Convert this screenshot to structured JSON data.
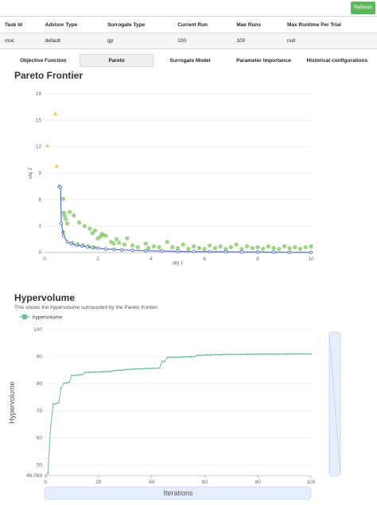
{
  "toolbar": {
    "refresh_label": "Refresh"
  },
  "info_table": {
    "headers": [
      "Task Id",
      "Advisor Type",
      "Surrogate Type",
      "Current Run",
      "Max Runs",
      "Max Runtime Per Trial"
    ],
    "row": [
      "moc",
      "default",
      "gp",
      "100",
      "100",
      "null"
    ]
  },
  "tabs": [
    {
      "label": "Objective Function",
      "active": false
    },
    {
      "label": "Pareto",
      "active": true
    },
    {
      "label": "Surrogate Model",
      "active": false
    },
    {
      "label": "Parameter Importance",
      "active": false
    },
    {
      "label": "Historical configurations",
      "active": false
    }
  ],
  "pareto": {
    "title": "Pareto Frontier"
  },
  "hypervolume": {
    "title": "Hypervolume",
    "description": "This shows the hypervolume surrounded by the Pareto frontier."
  },
  "chart_data": [
    {
      "type": "scatter",
      "title": "Pareto Frontier",
      "xlabel": "obj 1",
      "ylabel": "obj 2",
      "xlim": [
        0,
        10
      ],
      "ylim": [
        0,
        18
      ],
      "xticks": [
        0,
        2,
        4,
        6,
        8,
        10
      ],
      "yticks": [
        0,
        3,
        6,
        9,
        12,
        15,
        18
      ],
      "grid": true,
      "colors": {
        "frontier": "#5470c6",
        "samples": "#91cc75",
        "outliers": "#fac858"
      },
      "outliers": [
        [
          0.1,
          12.1
        ],
        [
          0.4,
          15.7
        ],
        [
          0.45,
          9.8
        ]
      ],
      "frontier": [
        [
          0.55,
          7.5
        ],
        [
          0.6,
          7.4
        ],
        [
          0.63,
          3.3
        ],
        [
          0.72,
          1.9
        ],
        [
          0.85,
          1.2
        ],
        [
          1.0,
          1.0
        ],
        [
          1.2,
          0.85
        ],
        [
          1.4,
          0.75
        ],
        [
          1.6,
          0.65
        ],
        [
          1.8,
          0.55
        ],
        [
          2.0,
          0.5
        ],
        [
          2.3,
          0.4
        ],
        [
          2.6,
          0.35
        ],
        [
          2.9,
          0.3
        ],
        [
          3.3,
          0.25
        ],
        [
          3.8,
          0.2
        ],
        [
          4.4,
          0.17
        ],
        [
          5.0,
          0.13
        ],
        [
          5.6,
          0.1
        ],
        [
          6.2,
          0.09
        ],
        [
          6.8,
          0.08
        ],
        [
          7.4,
          0.06
        ],
        [
          8.0,
          0.05
        ],
        [
          8.6,
          0.04
        ],
        [
          9.2,
          0.03
        ],
        [
          10.0,
          0.02
        ]
      ],
      "samples": [
        [
          0.7,
          6.1
        ],
        [
          0.72,
          4.5
        ],
        [
          0.75,
          4.2
        ],
        [
          0.8,
          3.8
        ],
        [
          0.85,
          3.3
        ],
        [
          0.7,
          2.3
        ],
        [
          0.95,
          4.6
        ],
        [
          1.1,
          4.2
        ],
        [
          1.3,
          3.4
        ],
        [
          1.5,
          3.0
        ],
        [
          1.7,
          2.7
        ],
        [
          1.8,
          2.2
        ],
        [
          1.9,
          2.5
        ],
        [
          2.0,
          1.6
        ],
        [
          2.1,
          1.8
        ],
        [
          2.15,
          2.1
        ],
        [
          2.2,
          2.0
        ],
        [
          2.3,
          1.9
        ],
        [
          2.5,
          1.2
        ],
        [
          2.6,
          1.0
        ],
        [
          2.7,
          1.5
        ],
        [
          2.8,
          1.1
        ],
        [
          3.0,
          0.9
        ],
        [
          3.1,
          1.6
        ],
        [
          3.3,
          0.8
        ],
        [
          3.5,
          0.6
        ],
        [
          3.8,
          1.0
        ],
        [
          3.9,
          0.5
        ],
        [
          4.1,
          0.7
        ],
        [
          4.3,
          0.6
        ],
        [
          4.6,
          1.2
        ],
        [
          4.8,
          0.6
        ],
        [
          5.0,
          0.5
        ],
        [
          5.2,
          0.9
        ],
        [
          5.4,
          0.4
        ],
        [
          5.6,
          0.7
        ],
        [
          5.8,
          0.5
        ],
        [
          6.0,
          0.4
        ],
        [
          6.2,
          0.8
        ],
        [
          6.4,
          0.5
        ],
        [
          6.6,
          0.7
        ],
        [
          6.8,
          0.4
        ],
        [
          7.0,
          0.6
        ],
        [
          7.2,
          0.9
        ],
        [
          7.4,
          0.4
        ],
        [
          7.6,
          0.7
        ],
        [
          7.8,
          0.5
        ],
        [
          8.0,
          0.6
        ],
        [
          8.2,
          0.4
        ],
        [
          8.4,
          0.7
        ],
        [
          8.6,
          0.5
        ],
        [
          8.8,
          0.4
        ],
        [
          9.0,
          0.7
        ],
        [
          9.2,
          0.5
        ],
        [
          9.4,
          0.6
        ],
        [
          9.6,
          0.4
        ],
        [
          9.8,
          0.6
        ],
        [
          10.0,
          0.7
        ],
        [
          1.05,
          1.1
        ],
        [
          1.25,
          0.9
        ],
        [
          1.45,
          0.8
        ],
        [
          1.65,
          0.7
        ],
        [
          1.85,
          0.6
        ]
      ]
    },
    {
      "type": "line",
      "title": "Hypervolume",
      "xlabel": "Iterations",
      "ylabel": "Hypervolume",
      "legend": "top-left",
      "series": [
        {
          "name": "hypervolume",
          "color": "#6fbe9a"
        }
      ],
      "xlim": [
        0,
        100
      ],
      "ylim": [
        46.069,
        100
      ],
      "xticks": [
        0,
        20,
        40,
        60,
        80,
        100
      ],
      "yticks": [
        50,
        60,
        70,
        80,
        90,
        100
      ],
      "ymin_label": "46.069",
      "grid": true,
      "x": [
        0,
        1,
        2,
        3,
        4,
        5,
        6,
        7,
        8,
        9,
        10,
        11,
        12,
        13,
        14,
        15,
        16,
        17,
        18,
        19,
        20,
        21,
        22,
        23,
        24,
        25,
        26,
        27,
        28,
        29,
        30,
        31,
        32,
        33,
        34,
        35,
        36,
        37,
        38,
        39,
        40,
        41,
        42,
        43,
        44,
        45,
        46,
        47,
        48,
        49,
        50,
        51,
        52,
        53,
        54,
        55,
        56,
        57,
        58,
        59,
        60,
        61,
        62,
        63,
        64,
        65,
        66,
        67,
        68,
        69,
        70,
        71,
        72,
        73,
        74,
        75,
        76,
        77,
        78,
        79,
        80,
        81,
        82,
        83,
        84,
        85,
        86,
        87,
        88,
        89,
        90,
        91,
        92,
        93,
        94,
        95,
        96,
        97,
        98,
        99,
        100
      ],
      "values": [
        46.069,
        47.0,
        64.5,
        72.5,
        72.6,
        73.0,
        78.5,
        80.2,
        80.3,
        80.5,
        83.1,
        83.1,
        83.2,
        83.3,
        83.4,
        84.1,
        84.2,
        84.2,
        84.3,
        84.3,
        84.3,
        84.4,
        84.4,
        84.5,
        84.5,
        84.6,
        84.8,
        84.9,
        85.0,
        85.0,
        85.2,
        85.3,
        85.3,
        85.4,
        85.4,
        85.5,
        85.5,
        85.5,
        85.6,
        85.6,
        85.7,
        85.7,
        85.7,
        85.8,
        88.2,
        88.3,
        89.7,
        89.7,
        89.7,
        89.8,
        89.8,
        89.8,
        89.9,
        89.9,
        89.9,
        90.0,
        90.0,
        90.4,
        90.5,
        90.5,
        90.6,
        90.6,
        90.6,
        90.7,
        90.7,
        90.7,
        90.7,
        90.8,
        90.8,
        90.8,
        90.8,
        90.8,
        90.8,
        90.8,
        90.8,
        90.8,
        90.9,
        90.9,
        90.9,
        90.9,
        90.9,
        90.9,
        90.9,
        90.9,
        90.9,
        90.9,
        90.9,
        90.9,
        90.9,
        90.9,
        90.9,
        90.9,
        91.0,
        91.0,
        91.0,
        91.0,
        91.0,
        91.0,
        91.0,
        91.0,
        91.0
      ]
    }
  ]
}
